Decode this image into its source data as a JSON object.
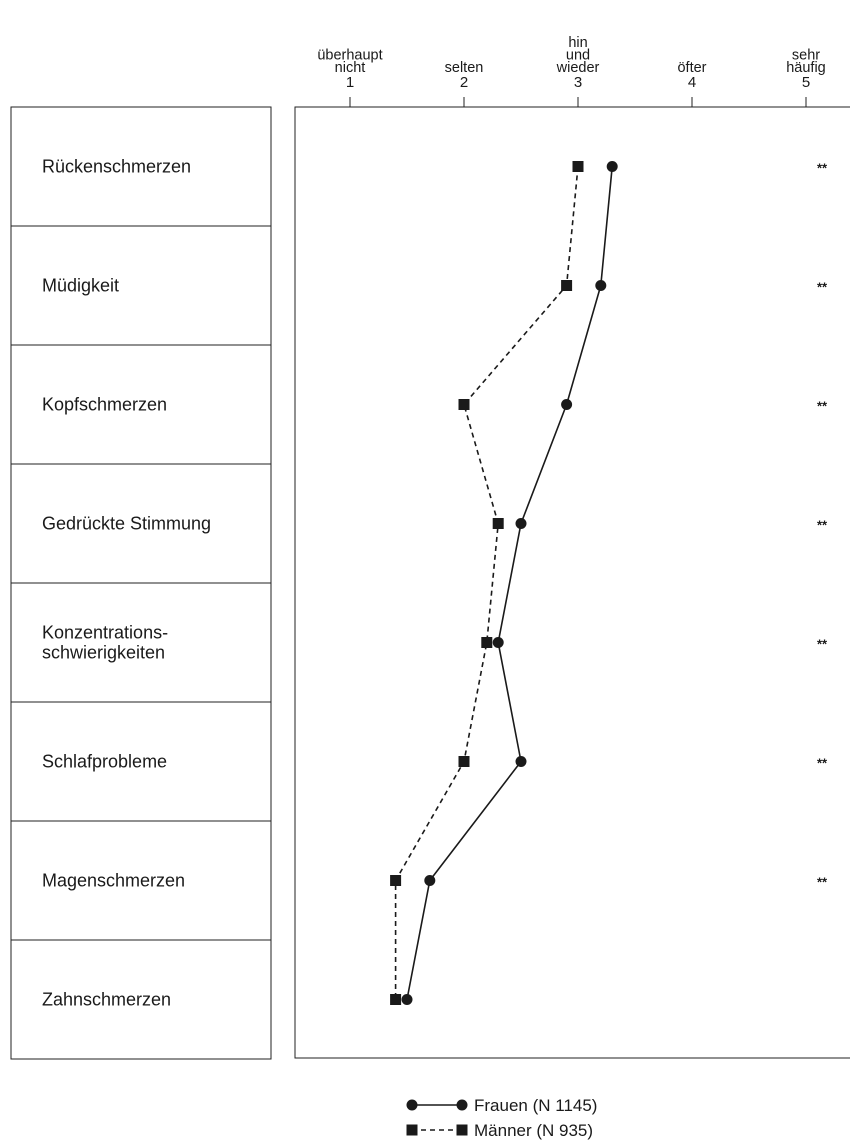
{
  "chart_data": {
    "type": "line",
    "orientation": "horizontal-dot-plot",
    "title": "",
    "xlabel": "",
    "ylabel": "",
    "xlim": [
      0.5,
      5.3
    ],
    "scale": [
      {
        "value": 1,
        "label": [
          "überhaupt",
          "nicht"
        ]
      },
      {
        "value": 2,
        "label": [
          "selten"
        ]
      },
      {
        "value": 3,
        "label": [
          "hin",
          "und",
          "wieder"
        ]
      },
      {
        "value": 4,
        "label": [
          "öfter"
        ]
      },
      {
        "value": 5,
        "label": [
          "sehr",
          "häufig"
        ]
      }
    ],
    "categories": [
      {
        "label": [
          "Rückenschmerzen"
        ],
        "significance": "**"
      },
      {
        "label": [
          "Müdigkeit"
        ],
        "significance": "**"
      },
      {
        "label": [
          "Kopfschmerzen"
        ],
        "significance": "**"
      },
      {
        "label": [
          "Gedrückte Stimmung"
        ],
        "significance": "**"
      },
      {
        "label": [
          "Konzentrations-",
          "schwierigkeiten"
        ],
        "significance": "**"
      },
      {
        "label": [
          "Schlafprobleme"
        ],
        "significance": "**"
      },
      {
        "label": [
          "Magenschmerzen"
        ],
        "significance": "**"
      },
      {
        "label": [
          "Zahnschmerzen"
        ],
        "significance": ""
      }
    ],
    "series": [
      {
        "name": "Frauen (N 1145)",
        "marker": "circle",
        "line": "solid",
        "color": "#1a1a1a",
        "values": [
          3.3,
          3.2,
          2.9,
          2.5,
          2.3,
          2.5,
          1.7,
          1.5
        ]
      },
      {
        "name": "Männer (N 935)",
        "marker": "square",
        "line": "dashed",
        "color": "#1a1a1a",
        "values": [
          3.0,
          2.9,
          2.0,
          2.3,
          2.2,
          2.0,
          1.4,
          1.4
        ]
      }
    ],
    "grid": false,
    "legend_position": "bottom-center"
  }
}
